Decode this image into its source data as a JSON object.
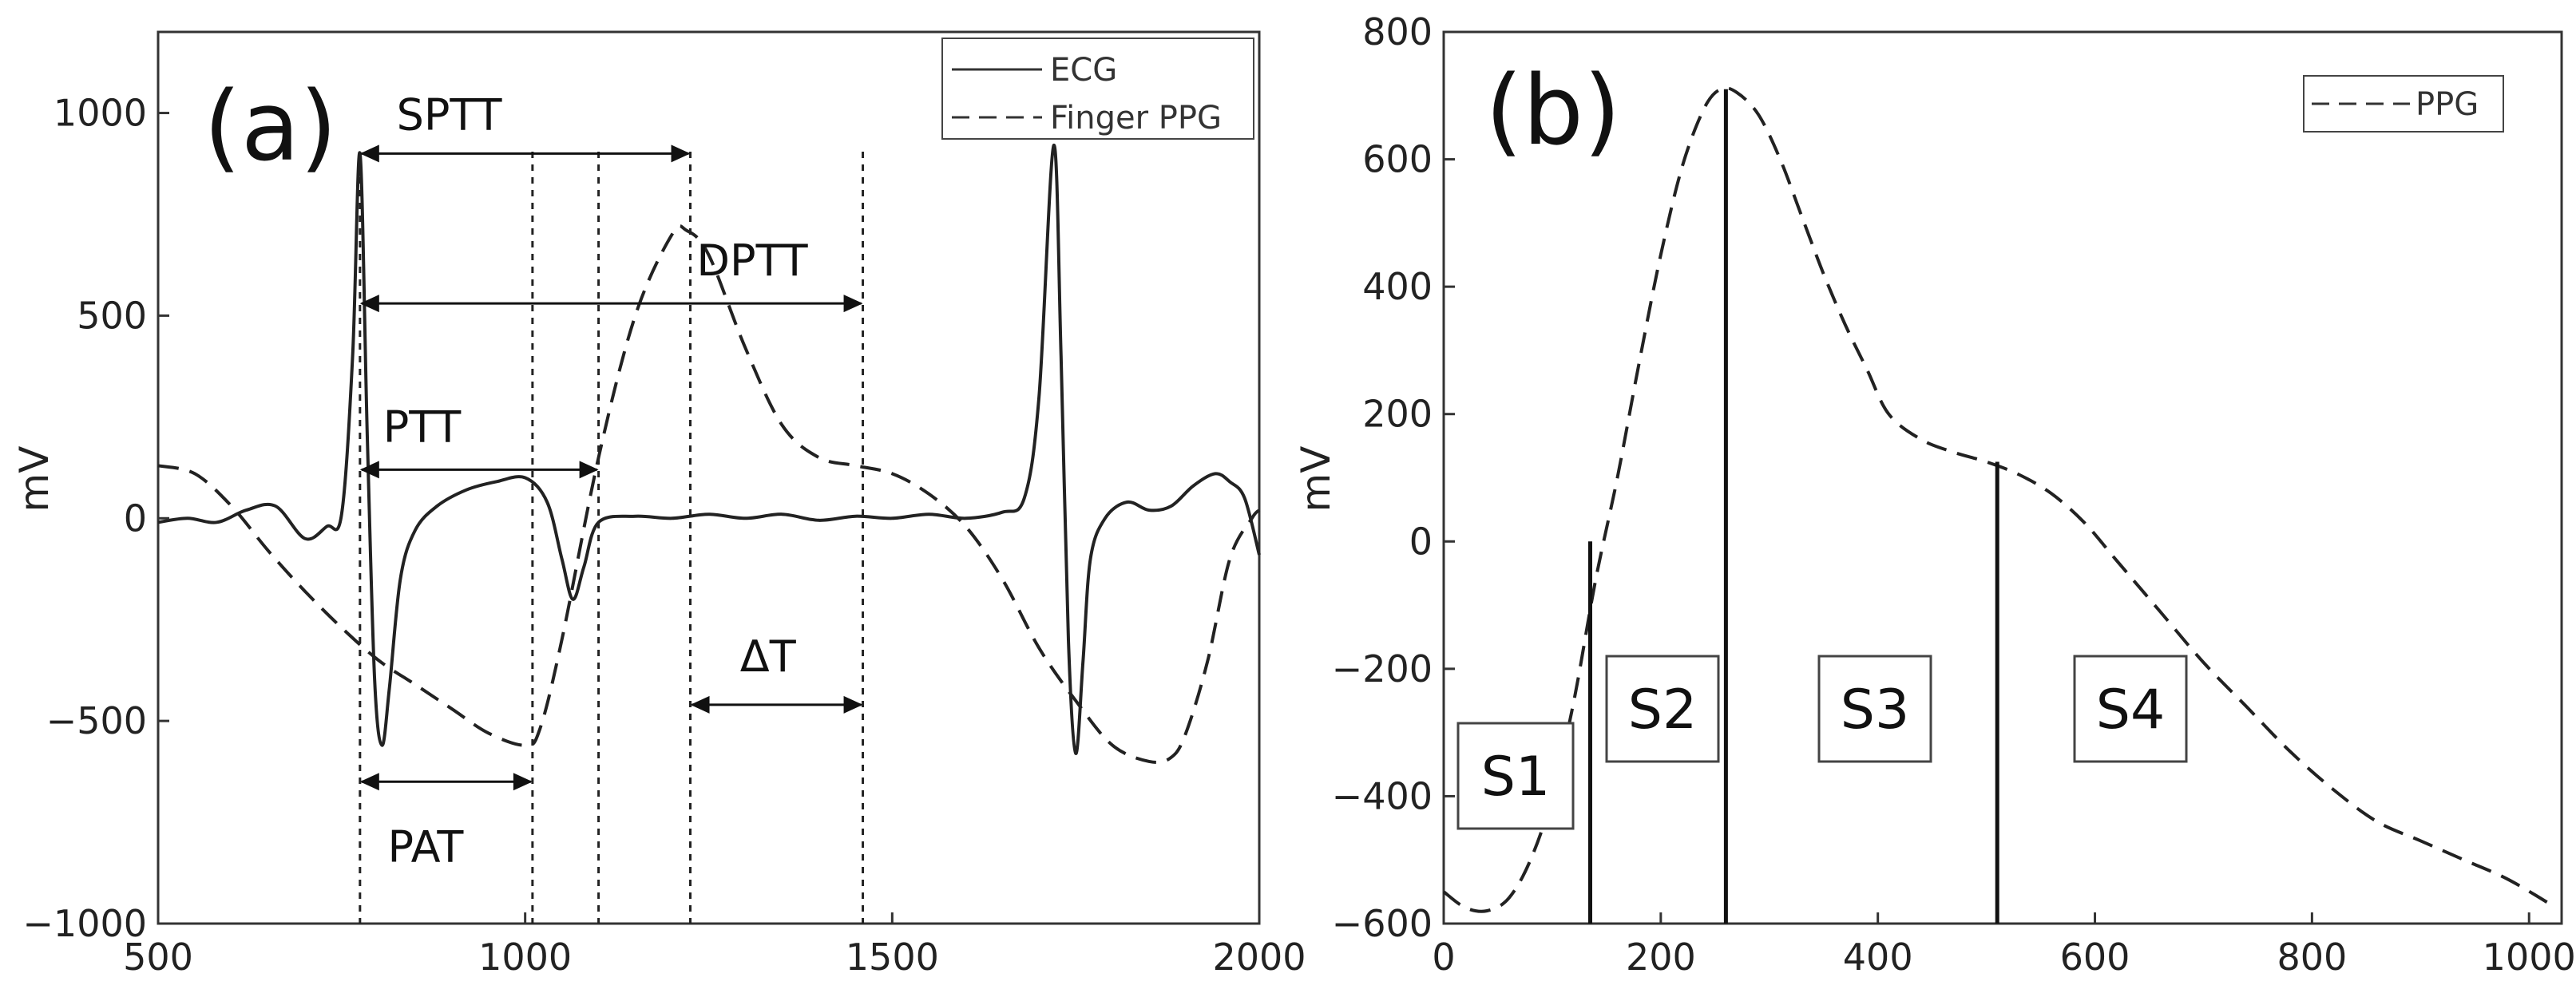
{
  "chart_data": [
    {
      "type": "line",
      "panel_label": "(a)",
      "ylabel": "mV",
      "xlabel": "",
      "xlim": [
        500,
        2000
      ],
      "ylim": [
        -1000,
        1200
      ],
      "xticks": [
        500,
        1000,
        1500,
        2000
      ],
      "yticks": [
        1000,
        500,
        0,
        -500,
        -1000
      ],
      "ytick_labels": [
        "1000",
        "500",
        "0",
        "−500",
        "−1000"
      ],
      "legend": {
        "position": "top-right",
        "entries": [
          "ECG",
          "Finger PPG"
        ]
      },
      "series": [
        {
          "name": "ECG",
          "style": "solid",
          "x": [
            500,
            540,
            580,
            620,
            660,
            700,
            730,
            750,
            765,
            775,
            785,
            795,
            805,
            815,
            830,
            850,
            880,
            920,
            960,
            1000,
            1030,
            1050,
            1065,
            1080,
            1100,
            1150,
            1200,
            1250,
            1300,
            1350,
            1400,
            1450,
            1500,
            1550,
            1600,
            1650,
            1680,
            1700,
            1720,
            1730,
            1740,
            1750,
            1760,
            1770,
            1790,
            1820,
            1850,
            1880,
            1910,
            1940,
            1960,
            1980,
            2000
          ],
          "y": [
            -10,
            0,
            -10,
            20,
            30,
            -50,
            -20,
            10,
            400,
            900,
            200,
            -400,
            -560,
            -420,
            -150,
            -30,
            30,
            70,
            90,
            100,
            40,
            -100,
            -200,
            -120,
            -10,
            5,
            0,
            10,
            0,
            10,
            -5,
            5,
            0,
            10,
            0,
            15,
            50,
            300,
            920,
            400,
            -300,
            -580,
            -350,
            -100,
            0,
            40,
            20,
            30,
            80,
            110,
            90,
            50,
            -90
          ]
        },
        {
          "name": "Finger PPG",
          "style": "dashed",
          "x": [
            500,
            550,
            600,
            650,
            700,
            750,
            800,
            850,
            900,
            950,
            1000,
            1020,
            1050,
            1100,
            1150,
            1200,
            1220,
            1250,
            1300,
            1350,
            1400,
            1450,
            1500,
            1550,
            1600,
            1650,
            1700,
            1750,
            1800,
            1850,
            1880,
            1900,
            1930,
            1960,
            1990,
            2000
          ],
          "y": [
            130,
            110,
            30,
            -80,
            -180,
            -270,
            -350,
            -410,
            -470,
            -530,
            -560,
            -520,
            -300,
            150,
            500,
            700,
            710,
            650,
            420,
            230,
            150,
            130,
            110,
            60,
            -20,
            -150,
            -320,
            -450,
            -560,
            -600,
            -590,
            -530,
            -350,
            -100,
            0,
            20
          ]
        }
      ],
      "vlines": [
        775,
        1010,
        1100,
        1225,
        1460
      ],
      "annotations": [
        {
          "label": "SPTT",
          "x_start": 775,
          "x_end": 1225,
          "y": 900
        },
        {
          "label": "DPTT",
          "x_start": 775,
          "x_end": 1460,
          "y": 530
        },
        {
          "label": "PTT",
          "x_start": 775,
          "x_end": 1100,
          "y": 120
        },
        {
          "label": "ΔT",
          "x_start": 1225,
          "x_end": 1460,
          "y": -460
        },
        {
          "label": "PAT",
          "x_start": 775,
          "x_end": 1010,
          "y": -650
        }
      ]
    },
    {
      "type": "line",
      "panel_label": "(b)",
      "ylabel": "mV",
      "xlabel": "",
      "xlim": [
        0,
        1030
      ],
      "ylim": [
        -600,
        800
      ],
      "xticks": [
        0,
        200,
        400,
        600,
        800,
        1000
      ],
      "yticks": [
        800,
        600,
        400,
        200,
        0,
        -200,
        -400,
        -600
      ],
      "ytick_labels": [
        "800",
        "600",
        "400",
        "200",
        "0",
        "−200",
        "−400",
        "−600"
      ],
      "legend": {
        "position": "top-right",
        "entries": [
          "PPG"
        ]
      },
      "series": [
        {
          "name": "PPG",
          "style": "dashed",
          "x": [
            0,
            20,
            40,
            60,
            80,
            100,
            120,
            140,
            160,
            180,
            200,
            220,
            240,
            255,
            270,
            290,
            310,
            330,
            350,
            370,
            390,
            410,
            440,
            470,
            500,
            530,
            560,
            590,
            620,
            660,
            700,
            740,
            780,
            820,
            860,
            900,
            940,
            980,
            1020
          ],
          "y": [
            -550,
            -575,
            -580,
            -560,
            -500,
            -400,
            -250,
            -60,
            100,
            280,
            450,
            590,
            680,
            710,
            705,
            670,
            600,
            510,
            420,
            340,
            270,
            200,
            160,
            140,
            125,
            105,
            75,
            30,
            -30,
            -110,
            -190,
            -260,
            -330,
            -390,
            -440,
            -470,
            -500,
            -530,
            -570
          ]
        }
      ],
      "segment_lines": [
        {
          "x": 135,
          "y_top": 0
        },
        {
          "x": 260,
          "y_top": 710
        },
        {
          "x": 510,
          "y_top": 125
        }
      ],
      "segment_labels": [
        "S1",
        "S2",
        "S3",
        "S4"
      ]
    }
  ]
}
